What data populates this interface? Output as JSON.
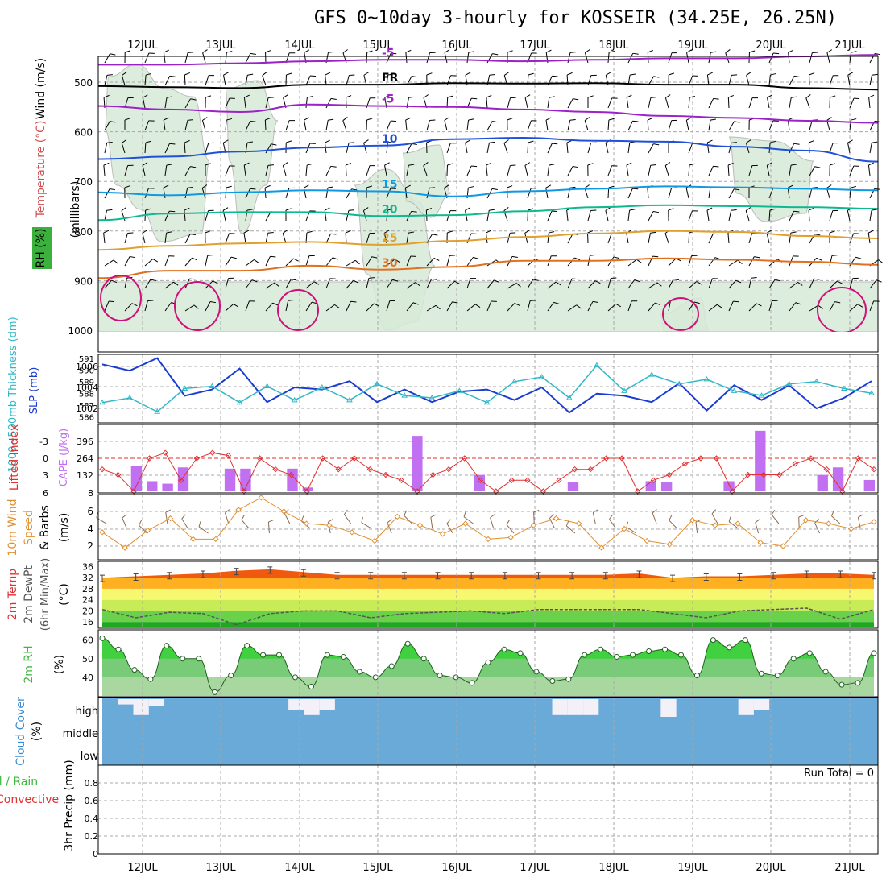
{
  "title": "GFS 0~10day 3-hourly for KOSSEIR (34.25E, 26.25N)",
  "days": [
    "12JUL",
    "13JUL",
    "14JUL",
    "15JUL",
    "16JUL",
    "17JUL",
    "18JUL",
    "19JUL",
    "20JUL",
    "21JUL"
  ],
  "colors": {
    "purple": "#9a22c8",
    "black": "#000000",
    "blue10": "#2050d8",
    "blue15": "#1098e0",
    "teal20": "#10b890",
    "orange25": "#e0a030",
    "orange30": "#e07020",
    "magenta": "#d0107a",
    "rhShade": "#d8ead8",
    "slp": "#1a3cd0",
    "thick": "#30b8c8",
    "cape": "#c070f0",
    "lifted": "#e03030",
    "wind": "#e09030",
    "cloud": "#6aaad8",
    "rhGreen": "#40b840"
  },
  "panel_labels": {
    "upper_wind": "Wind (m/s)",
    "upper_temp": "Temperature (°C)",
    "upper_rh": "RH (%)",
    "upper_axis": "(millibars)",
    "slp": "SLP (mb)",
    "thickness": "1000~500mb Thickness (dm)",
    "cape": "CAPE (J/kg)",
    "lifted": "Lifted Index",
    "wind10_line1": "10m Wind",
    "wind10_line2": "Speed",
    "wind10_line3": "& Barbs",
    "wind10_unit": "(m/s)",
    "t2m_line1": "2m Temp",
    "t2m_line2": "2m DewPt",
    "t2m_line3": "(6hr Min/Max)",
    "t2m_unit": "(°C)",
    "rh2m": "2m RH",
    "rh2m_unit": "(%)",
    "cloud": "Cloud Cover",
    "cloud_unit": "(%)",
    "precip_line1": "Total / Rain",
    "precip_line2": "Convective",
    "precip_line3": "3hr Precip",
    "precip_unit": "(mm)"
  },
  "run_total": "Run Total = 0",
  "chart_data": [
    {
      "type": "line",
      "name": "upper-air",
      "ylabel": "millibars",
      "yticks": [
        "500",
        "600",
        "700",
        "800",
        "900",
        "1000"
      ],
      "ylim": [
        1050,
        440
      ],
      "isotherms": [
        {
          "label": "-5",
          "values": [
            465,
            465,
            462,
            458,
            455,
            455,
            458,
            455,
            452,
            452,
            448,
            445
          ]
        },
        {
          "label": "FR",
          "values": [
            508,
            510,
            512,
            505,
            505,
            502,
            503,
            502,
            505,
            505,
            512,
            515
          ]
        },
        {
          "label": "-5",
          "values": [
            548,
            555,
            560,
            545,
            548,
            550,
            555,
            560,
            568,
            572,
            578,
            582
          ]
        },
        {
          "label": "10",
          "values": [
            655,
            650,
            640,
            632,
            628,
            615,
            612,
            618,
            620,
            630,
            638,
            660
          ]
        },
        {
          "label": "15",
          "values": [
            722,
            728,
            722,
            718,
            720,
            730,
            720,
            715,
            710,
            712,
            715,
            718
          ]
        },
        {
          "label": "20",
          "values": [
            778,
            765,
            762,
            762,
            770,
            768,
            760,
            752,
            748,
            750,
            752,
            755
          ]
        },
        {
          "label": "25",
          "values": [
            838,
            830,
            825,
            822,
            828,
            820,
            812,
            805,
            800,
            802,
            810,
            815
          ]
        },
        {
          "label": "30",
          "values": [
            895,
            880,
            880,
            870,
            878,
            872,
            860,
            860,
            855,
            858,
            862,
            868
          ]
        }
      ]
    },
    {
      "type": "line",
      "name": "slp-thickness",
      "yticks_left": [
        "591",
        "590",
        "589",
        "588",
        "587",
        "586"
      ],
      "yticks_right": [
        "1006",
        "1004",
        "1002"
      ],
      "series": [
        {
          "name": "SLP (mb)",
          "values": [
            1006.2,
            1005.6,
            1006.8,
            1003.2,
            1003.8,
            1005.8,
            1002.6,
            1004.0,
            1003.8,
            1004.6,
            1002.6,
            1003.8,
            1002.6,
            1003.6,
            1003.8,
            1002.8,
            1004.0,
            1001.6,
            1003.4,
            1003.2,
            1002.6,
            1004.4,
            1001.8,
            1004.2,
            1002.8,
            1004.2,
            1002.0,
            1003.0,
            1004.6
          ]
        },
        {
          "name": "1000~500mb Thickness (dm)",
          "values": [
            587.2,
            587.6,
            586.4,
            588.4,
            588.6,
            587.2,
            588.6,
            587.4,
            588.5,
            587.4,
            588.8,
            587.8,
            587.6,
            588.2,
            587.2,
            589.0,
            589.4,
            587.6,
            590.4,
            588.2,
            589.6,
            588.8,
            589.2,
            588.2,
            587.8,
            588.8,
            589.0,
            588.4,
            588.0
          ]
        }
      ]
    },
    {
      "type": "bar",
      "name": "cape-lifted",
      "yticks_left": [
        "396",
        "264",
        "132",
        "8"
      ],
      "yticks_right": [
        "-3",
        "0",
        "3",
        "6"
      ],
      "series": [
        {
          "name": "CAPE (J/kg)",
          "values": [
            0,
            0,
            200,
            80,
            60,
            190,
            0,
            0,
            180,
            180,
            0,
            0,
            180,
            30,
            0,
            0,
            0,
            0,
            0,
            0,
            440,
            0,
            0,
            0,
            130,
            0,
            0,
            0,
            0,
            0,
            70,
            0,
            0,
            0,
            0,
            80,
            70,
            0,
            0,
            0,
            80,
            0,
            480,
            0,
            0,
            0,
            130,
            190,
            0,
            90
          ]
        },
        {
          "name": "Lifted Index",
          "values": [
            2,
            3,
            6,
            0,
            -1,
            4,
            0,
            -1,
            -0.5,
            6,
            0,
            2,
            3,
            6,
            0,
            2,
            0,
            2,
            3,
            4,
            6,
            3,
            2,
            0,
            4,
            6,
            4,
            4,
            6,
            4,
            2,
            2,
            0,
            0,
            6,
            4,
            3,
            1,
            0,
            0,
            6,
            3,
            3,
            3,
            1,
            0,
            2,
            6,
            0,
            2
          ]
        }
      ]
    },
    {
      "type": "line",
      "name": "wind10m",
      "yticks": [
        "6",
        "4",
        "2"
      ],
      "series": [
        {
          "name": "Speed (m/s)",
          "values": [
            3.6,
            1.8,
            3.8,
            5.2,
            2.8,
            2.8,
            6.2,
            7.6,
            6.0,
            4.6,
            4.4,
            3.6,
            2.6,
            5.4,
            4.4,
            3.4,
            4.6,
            2.8,
            3.0,
            4.4,
            5.2,
            4.6,
            1.8,
            4.0,
            2.6,
            2.2,
            5.0,
            4.4,
            4.6,
            2.4,
            2.0,
            5.0,
            4.6,
            4.0,
            4.8
          ]
        }
      ]
    },
    {
      "type": "area",
      "name": "temp2m",
      "yticks": [
        "36",
        "32",
        "28",
        "24",
        "20",
        "16"
      ],
      "series": [
        {
          "name": "2m Temp",
          "values": [
            32.0,
            32.5,
            33.0,
            33.5,
            34.5,
            35.0,
            34.0,
            33.0,
            33.0,
            33.0,
            33.0,
            33.0,
            33.0,
            33.0,
            33.0,
            33.0,
            33.5,
            32.0,
            32.5,
            32.5,
            33.0,
            33.5,
            33.5,
            33.0
          ]
        },
        {
          "name": "2m DewPt",
          "values": [
            20.5,
            17.5,
            19.5,
            19.0,
            15.0,
            19.0,
            20.0,
            20.0,
            17.5,
            19.0,
            19.5,
            20.0,
            19.0,
            20.5,
            20.5,
            20.5,
            20.5,
            19.0,
            17.5,
            20.0,
            20.5,
            21.0,
            17.0,
            20.5
          ]
        }
      ]
    },
    {
      "type": "area",
      "name": "rh2m",
      "yticks": [
        "60",
        "50",
        "40"
      ],
      "series": [
        {
          "name": "2m RH",
          "values": [
            61,
            55,
            44,
            39,
            57,
            50,
            50,
            32,
            41,
            57,
            52,
            52,
            40,
            35,
            52,
            51,
            43,
            40,
            46,
            58,
            50,
            41,
            40,
            37,
            48,
            55,
            53,
            43,
            38,
            39,
            52,
            55,
            51,
            52,
            54,
            55,
            52,
            41,
            60,
            56,
            60,
            42,
            41,
            50,
            53,
            43,
            36,
            37,
            53
          ]
        }
      ]
    },
    {
      "type": "bar",
      "name": "cloud-cover",
      "yticks": [
        "high",
        "middle",
        "low"
      ],
      "series": [
        {
          "name": "high",
          "values": [
            0,
            30,
            90,
            40,
            0,
            0,
            0,
            0,
            0,
            0,
            0,
            0,
            60,
            90,
            60,
            0,
            0,
            0,
            0,
            0,
            0,
            0,
            0,
            0,
            0,
            0,
            0,
            0,
            0,
            90,
            90,
            90,
            0,
            0,
            0,
            0,
            100,
            0,
            0,
            0,
            0,
            90,
            60,
            0,
            0,
            0,
            0,
            0,
            0,
            0
          ]
        }
      ]
    },
    {
      "type": "bar",
      "name": "precip",
      "yticks": [
        "0.8",
        "0.6",
        "0.4",
        "0.2",
        "0"
      ],
      "ylim": [
        0,
        0.9
      ],
      "series": [
        {
          "name": "Total / Rain",
          "values": [
            0,
            0,
            0,
            0,
            0,
            0,
            0,
            0,
            0,
            0
          ]
        },
        {
          "name": "Convective",
          "values": [
            0,
            0,
            0,
            0,
            0,
            0,
            0,
            0,
            0,
            0
          ]
        }
      ]
    }
  ]
}
